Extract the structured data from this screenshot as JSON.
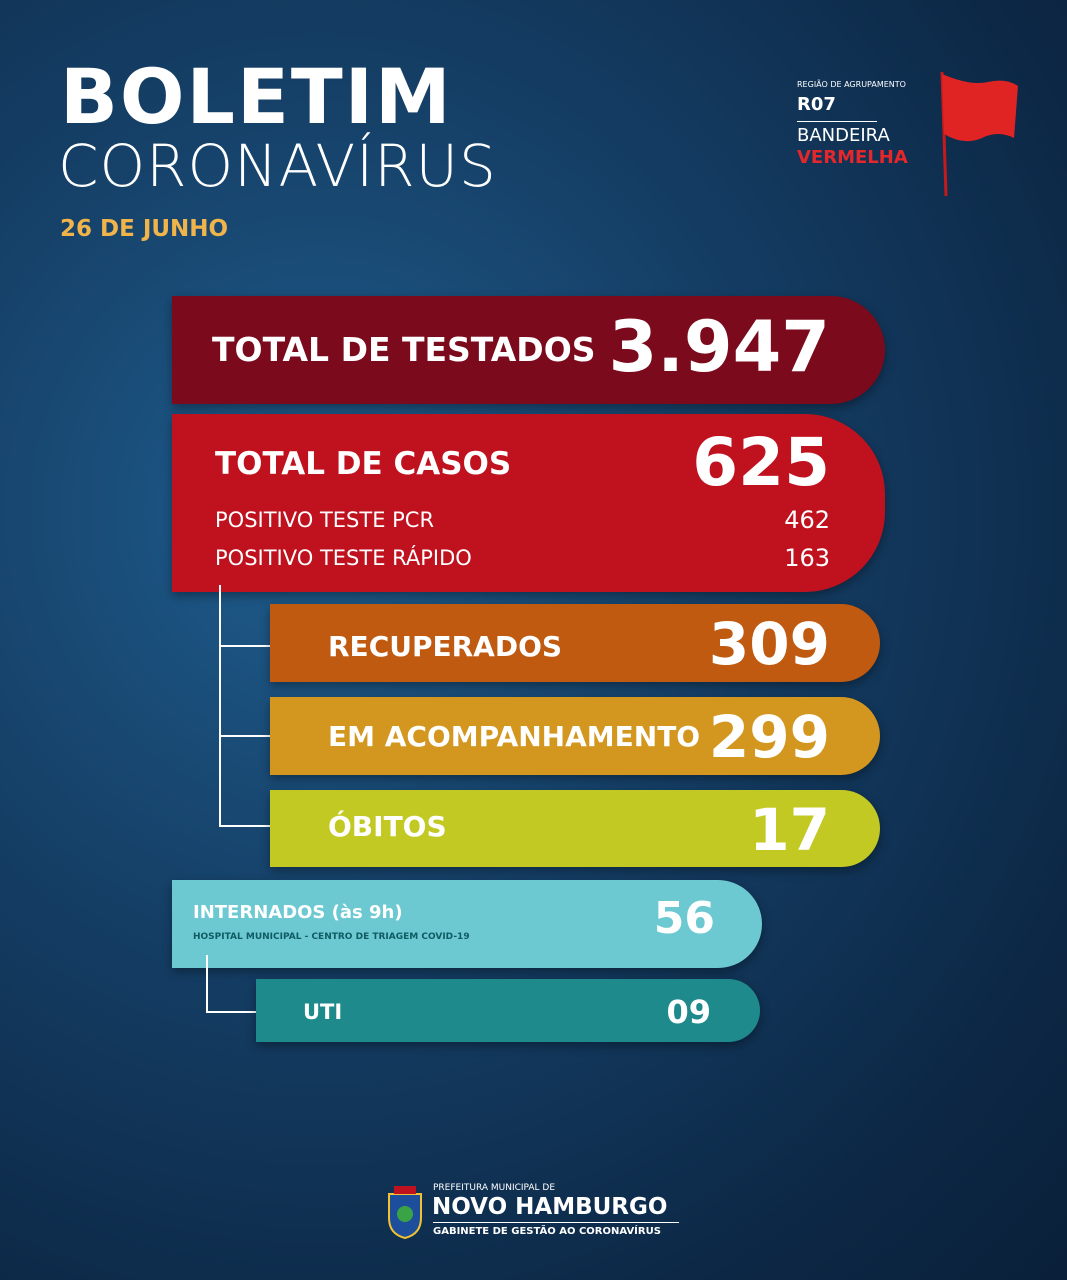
{
  "header": {
    "title": "BOLETIM",
    "subtitle": "CORONAVÍRUS",
    "date": "26 DE JUNHO"
  },
  "region": {
    "label": "REGIÃO DE AGRUPAMENTO",
    "code": "R07",
    "flag_line1": "BANDEIRA",
    "flag_line2": "VERMELHA"
  },
  "tested": {
    "label": "TOTAL DE TESTADOS",
    "value": "3.947"
  },
  "cases": {
    "label": "TOTAL DE CASOS",
    "value": "625",
    "breakdown": [
      {
        "label": "POSITIVO TESTE PCR",
        "value": "462"
      },
      {
        "label": "POSITIVO TESTE RÁPIDO",
        "value": "163"
      }
    ]
  },
  "recovered": {
    "label": "RECUPERADOS",
    "value": "309"
  },
  "monitoring": {
    "label": "EM ACOMPANHAMENTO",
    "value": "299"
  },
  "deaths": {
    "label": "ÓBITOS",
    "value": "17"
  },
  "hospitalized": {
    "label": "INTERNADOS (às 9h)",
    "sublabel": "HOSPITAL MUNICIPAL - CENTRO DE TRIAGEM COVID-19",
    "value": "56"
  },
  "icu": {
    "label": "UTI",
    "value": "09"
  },
  "footer": {
    "line1": "PREFEITURA MUNICIPAL DE",
    "name": "NOVO HAMBURGO",
    "line2": "GABINETE DE GESTÃO AO CORONAVÍRUS"
  }
}
